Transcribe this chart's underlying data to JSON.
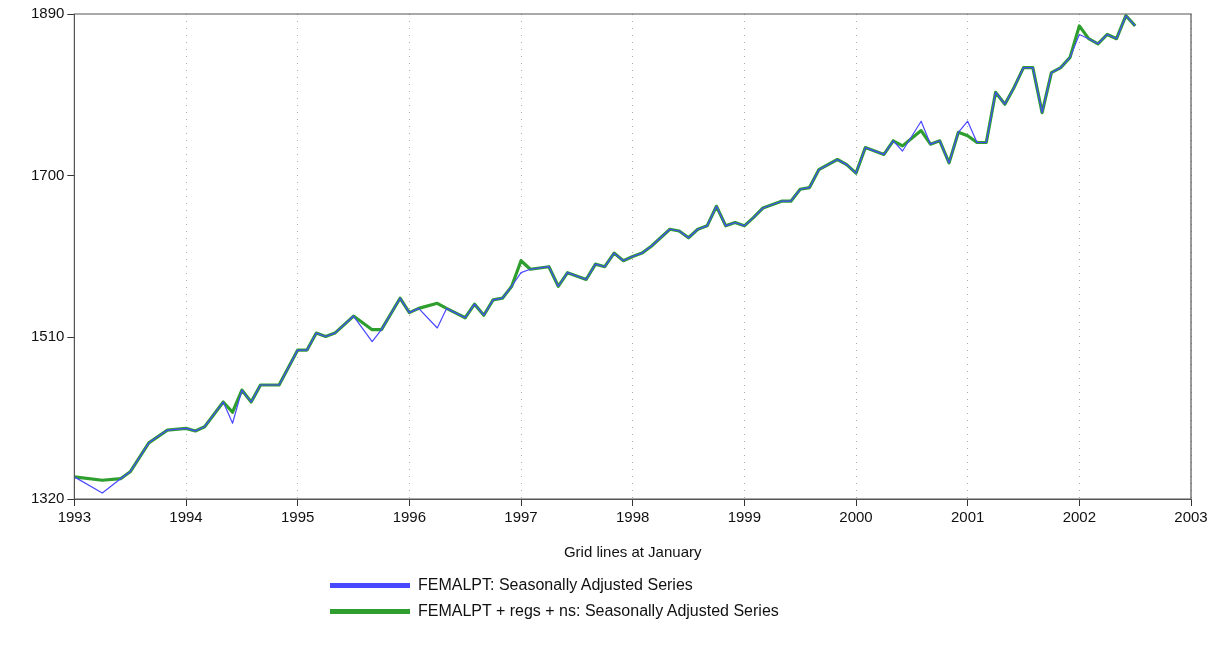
{
  "chart_data": {
    "type": "line",
    "xlabel": "Grid lines at January",
    "x": [
      "1993-01",
      "1993-04",
      "1993-06",
      "1993-07",
      "1993-09",
      "1993-11",
      "1994-01",
      "1994-02",
      "1994-03",
      "1994-05",
      "1994-06",
      "1994-07",
      "1994-08",
      "1994-09",
      "1994-11",
      "1995-01",
      "1995-02",
      "1995-03",
      "1995-04",
      "1995-05",
      "1995-07",
      "1995-09",
      "1995-10",
      "1995-12",
      "1996-01",
      "1996-02",
      "1996-04",
      "1996-05",
      "1996-07",
      "1996-08",
      "1996-09",
      "1996-10",
      "1996-11",
      "1996-12",
      "1997-01",
      "1997-02",
      "1997-04",
      "1997-05",
      "1997-06",
      "1997-08",
      "1997-09",
      "1997-10",
      "1997-11",
      "1997-12",
      "1998-01",
      "1998-02",
      "1998-03",
      "1998-05",
      "1998-06",
      "1998-07",
      "1998-08",
      "1998-09",
      "1998-10",
      "1998-11",
      "1998-12",
      "1999-01",
      "1999-02",
      "1999-03",
      "1999-05",
      "1999-06",
      "1999-07",
      "1999-08",
      "1999-09",
      "1999-11",
      "1999-12",
      "2000-01",
      "2000-02",
      "2000-04",
      "2000-05",
      "2000-06",
      "2000-08",
      "2000-09",
      "2000-10",
      "2000-11",
      "2000-12",
      "2001-01",
      "2001-02",
      "2001-03",
      "2001-04",
      "2001-05",
      "2001-06",
      "2001-07",
      "2001-08",
      "2001-09",
      "2001-10",
      "2001-11",
      "2001-12",
      "2002-01",
      "2002-02",
      "2002-03",
      "2002-04",
      "2002-05",
      "2002-06",
      "2002-07"
    ],
    "series": [
      {
        "name": "FEMALPT: Seasonally Adjusted Series",
        "color": "#4848ff",
        "values": [
          1346,
          1327,
          1344,
          1352,
          1386,
          1401,
          1403,
          1400,
          1405,
          1434,
          1409,
          1448,
          1434,
          1454,
          1454,
          1495,
          1495,
          1515,
          1511,
          1515,
          1535,
          1505,
          1519,
          1556,
          1539,
          1544,
          1521,
          1544,
          1533,
          1549,
          1536,
          1554,
          1556,
          1570,
          1586,
          1590,
          1593,
          1570,
          1586,
          1578,
          1596,
          1593,
          1609,
          1600,
          1605,
          1609,
          1617,
          1637,
          1635,
          1627,
          1637,
          1641,
          1664,
          1641,
          1645,
          1641,
          1651,
          1662,
          1670,
          1670,
          1684,
          1686,
          1707,
          1719,
          1713,
          1703,
          1733,
          1725,
          1741,
          1729,
          1764,
          1737,
          1741,
          1715,
          1751,
          1764,
          1739,
          1739,
          1798,
          1784,
          1804,
          1827,
          1827,
          1774,
          1821,
          1827,
          1839,
          1866,
          1861,
          1855,
          1866,
          1861,
          1888,
          1876
        ]
      },
      {
        "name": "FEMALPT + regs + ns: Seasonally Adjusted Series",
        "color": "#2e9e2e",
        "values": [
          1346,
          1342,
          1344,
          1352,
          1386,
          1401,
          1403,
          1400,
          1405,
          1434,
          1422,
          1448,
          1434,
          1454,
          1454,
          1495,
          1495,
          1515,
          1511,
          1515,
          1535,
          1519,
          1519,
          1556,
          1539,
          1544,
          1550,
          1544,
          1533,
          1549,
          1536,
          1554,
          1556,
          1570,
          1600,
          1590,
          1593,
          1570,
          1586,
          1578,
          1596,
          1593,
          1609,
          1600,
          1605,
          1609,
          1617,
          1637,
          1635,
          1627,
          1637,
          1641,
          1664,
          1641,
          1645,
          1641,
          1651,
          1662,
          1670,
          1670,
          1684,
          1686,
          1707,
          1719,
          1713,
          1703,
          1733,
          1725,
          1741,
          1735,
          1753,
          1737,
          1741,
          1715,
          1751,
          1747,
          1739,
          1739,
          1798,
          1784,
          1804,
          1827,
          1827,
          1774,
          1821,
          1827,
          1839,
          1876,
          1861,
          1855,
          1866,
          1861,
          1888,
          1876
        ]
      }
    ],
    "xlim": [
      "1993",
      "2003"
    ],
    "xticks": [
      "1993",
      "1994",
      "1995",
      "1996",
      "1997",
      "1998",
      "1999",
      "2000",
      "2001",
      "2002",
      "2003"
    ],
    "ylim": [
      1320,
      1890
    ],
    "yticks": [
      1320,
      1510,
      1700,
      1890
    ],
    "grid": "x",
    "legend": "bottom",
    "line_style": "solid"
  }
}
